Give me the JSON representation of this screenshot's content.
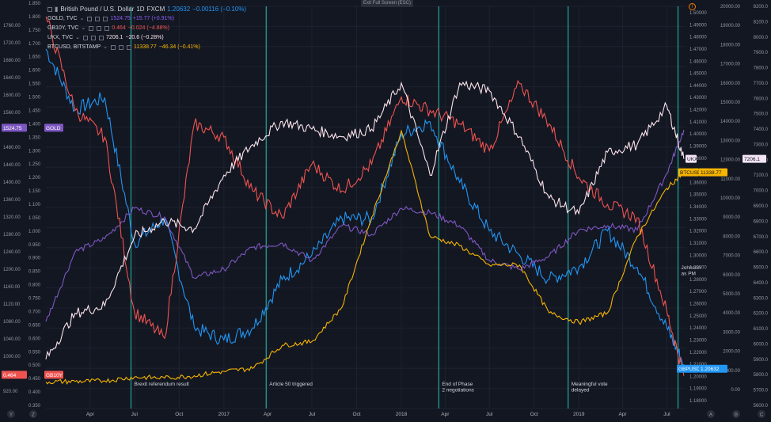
{
  "header": {
    "symbol_title": "British Pound / U.S. Dollar",
    "interval": "1D",
    "source": "FXCM",
    "last": "1.20632",
    "change": "−0.00116 (−0.10%)",
    "exit_label": "Exit Full Screen (ESC)",
    "alert_icon": "!"
  },
  "legend": [
    {
      "label": "GOLD, TVC",
      "value": "1524.75",
      "change": "+15.77 (+0.91%)",
      "color": "#8f5cf5"
    },
    {
      "label": "GB10Y, TVC",
      "value": "0.464",
      "change": "−0.024 (−4.88%)",
      "color": "#ef5350"
    },
    {
      "label": "UKX, TVC",
      "value": "7206.1",
      "change": "−20.6 (−0.28%)",
      "color": "#fce4ec"
    },
    {
      "label": "BTCUSD, BITSTAMP",
      "value": "11338.77",
      "change": "−46.34 (−0.41%)",
      "color": "#f7b500"
    }
  ],
  "axis_left_gold": [
    "1760.00",
    "1720.00",
    "1680.00",
    "1640.00",
    "1600.00",
    "1560.00",
    "1520.00",
    "1480.00",
    "1440.00",
    "1400.00",
    "1360.00",
    "1320.00",
    "1280.00",
    "1240.00",
    "1200.00",
    "1160.00",
    "1120.00",
    "1080.00",
    "1040.00",
    "1000.00",
    "960.00",
    "920.00"
  ],
  "axis_left_gb10y": [
    "1.850",
    "1.800",
    "1.750",
    "1.700",
    "1.650",
    "1.600",
    "1.550",
    "1.500",
    "1.450",
    "1.400",
    "1.350",
    "1.300",
    "1.250",
    "1.200",
    "1.150",
    "1.100",
    "1.050",
    "1.000",
    "0.950",
    "0.900",
    "0.850",
    "0.800",
    "0.750",
    "0.700",
    "0.650",
    "0.600",
    "0.550",
    "0.500",
    "0.450",
    "0.400",
    "0.350"
  ],
  "axis_right_gbp": [
    "1.50000",
    "1.49000",
    "1.48000",
    "1.47000",
    "1.46000",
    "1.45000",
    "1.44000",
    "1.43000",
    "1.42000",
    "1.41000",
    "1.40000",
    "1.39000",
    "1.38000",
    "1.37000",
    "1.36000",
    "1.35000",
    "1.34000",
    "1.33000",
    "1.32000",
    "1.31000",
    "1.30000",
    "1.29000",
    "1.28000",
    "1.27000",
    "1.26000",
    "1.25000",
    "1.24000",
    "1.23000",
    "1.22000",
    "1.21000",
    "1.20000",
    "1.19000",
    "1.18000"
  ],
  "axis_right_btc": [
    "20000.00",
    "19000.00",
    "18000.00",
    "17000.00",
    "16000.00",
    "15000.00",
    "14000.00",
    "13000.00",
    "12000.00",
    "11000.00",
    "10000.00",
    "9000.00",
    "8000.00",
    "7000.00",
    "6000.00",
    "5000.00",
    "4000.00",
    "3000.00",
    "2000.00",
    "1000.00",
    "0.00"
  ],
  "axis_right_ukx": [
    "8200.0",
    "8100.0",
    "8000.0",
    "7900.0",
    "7800.0",
    "7700.0",
    "7600.0",
    "7500.0",
    "7400.0",
    "7300.0",
    "7200.0",
    "7100.0",
    "7000.0",
    "6900.0",
    "6800.0",
    "6700.0",
    "6600.0",
    "6500.0",
    "6400.0",
    "6300.0",
    "6200.0",
    "6100.0",
    "6000.0",
    "5900.0",
    "5800.0",
    "5700.0",
    "5600.0"
  ],
  "time_axis": [
    "Apr",
    "Jul",
    "Oct",
    "2017",
    "Apr",
    "Jul",
    "Oct",
    "2018",
    "Apr",
    "Jul",
    "Oct",
    "2019",
    "Apr",
    "Jul"
  ],
  "bottom_corner_labels": [
    "Y",
    "Z",
    "A",
    "B",
    "C"
  ],
  "price_tags": [
    {
      "text": "1524.75",
      "sub": "GOLD",
      "color": "#7e57c2"
    },
    {
      "text": "0.464",
      "sub": "GB10Y",
      "color": "#ef5350"
    },
    {
      "text": "7206.1",
      "sub": "UKX",
      "color": "#f3e5f5"
    },
    {
      "text": "11338.77",
      "sub": "BTCUSD",
      "color": "#f7b500"
    },
    {
      "text": "1.20632",
      "sub": "GBPUSD",
      "color": "#2196f3"
    }
  ],
  "events": [
    {
      "label": "Brexit referendum result",
      "date": "2016-06-24"
    },
    {
      "label": "Article 50 triggered",
      "date": "2017-03-29"
    },
    {
      "label": "End of Phase 2 negotiations",
      "date": "2018-03-19"
    },
    {
      "label": "Meaningful vote delayed",
      "date": "2018-12-10"
    },
    {
      "label": "Johnson as PM",
      "date": "2019-07-24"
    }
  ],
  "chart_data": {
    "type": "line",
    "x_range": [
      "2016-01",
      "2019-08"
    ],
    "x": [
      "2016-01",
      "2016-03",
      "2016-05",
      "2016-07",
      "2016-09",
      "2016-11",
      "2017-01",
      "2017-03",
      "2017-05",
      "2017-07",
      "2017-09",
      "2017-11",
      "2018-01",
      "2018-03",
      "2018-05",
      "2018-07",
      "2018-09",
      "2018-11",
      "2019-01",
      "2019-03",
      "2019-05",
      "2019-07",
      "2019-08"
    ],
    "series": [
      {
        "name": "GBPUSD",
        "color": "#2196f3",
        "values": [
          1.47,
          1.42,
          1.43,
          1.31,
          1.33,
          1.24,
          1.23,
          1.24,
          1.28,
          1.3,
          1.33,
          1.33,
          1.4,
          1.41,
          1.36,
          1.32,
          1.3,
          1.28,
          1.29,
          1.32,
          1.29,
          1.24,
          1.21
        ]
      },
      {
        "name": "GOLD",
        "color": "#7e57c2",
        "values": [
          1080,
          1240,
          1270,
          1340,
          1320,
          1180,
          1200,
          1250,
          1260,
          1220,
          1300,
          1280,
          1340,
          1330,
          1300,
          1220,
          1200,
          1230,
          1290,
          1300,
          1290,
          1420,
          1520
        ]
      },
      {
        "name": "GB10Y",
        "color": "#ef5350",
        "values": [
          1.8,
          1.45,
          1.35,
          0.7,
          0.6,
          1.4,
          1.35,
          1.15,
          1.05,
          1.25,
          1.15,
          1.25,
          1.5,
          1.45,
          1.4,
          1.3,
          1.55,
          1.4,
          1.2,
          1.1,
          1.05,
          0.7,
          0.46
        ]
      },
      {
        "name": "UKX",
        "color": "#fce4ec",
        "values": [
          5900,
          6200,
          6250,
          6700,
          6800,
          6750,
          7100,
          7300,
          7450,
          7400,
          7350,
          7400,
          7700,
          7100,
          7700,
          7650,
          7350,
          6950,
          6850,
          7250,
          7300,
          7550,
          7206
        ]
      },
      {
        "name": "BTCUSD",
        "color": "#f7b500",
        "values": [
          400,
          420,
          450,
          650,
          600,
          720,
          950,
          1100,
          2300,
          2500,
          4300,
          9000,
          13500,
          8000,
          7500,
          6500,
          6500,
          4000,
          3500,
          4000,
          8000,
          10500,
          11338
        ]
      }
    ]
  }
}
